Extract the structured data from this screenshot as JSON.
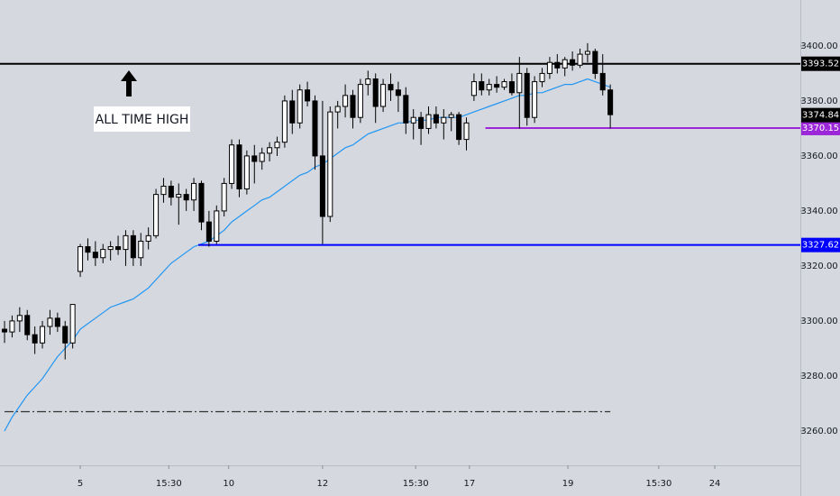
{
  "chart_data": {
    "type": "candlestick",
    "x": [
      0,
      1,
      2,
      3,
      4,
      5,
      6,
      7,
      8,
      9,
      10,
      11,
      12,
      13,
      14,
      15,
      16,
      17,
      18,
      19,
      20,
      21,
      22,
      23,
      24,
      25,
      26,
      27,
      28,
      29,
      30,
      31,
      32,
      33,
      34,
      35,
      36,
      37,
      38,
      39,
      40,
      41,
      42,
      43,
      44,
      45,
      46,
      47,
      48,
      49,
      50,
      51,
      52,
      53,
      54,
      55,
      56,
      57,
      58,
      59,
      60,
      61,
      62,
      63,
      64,
      65,
      66,
      67,
      68,
      69,
      70,
      71,
      72,
      73,
      74,
      75,
      76,
      77,
      78,
      79,
      80
    ],
    "open": [
      3297,
      3296,
      3300,
      3302,
      3295,
      3292,
      3298,
      3301,
      3298,
      3292,
      3318,
      3327,
      3325,
      3323,
      3326,
      3327,
      3326,
      3331,
      3323,
      3329,
      3331,
      3346,
      3349,
      3345,
      3346,
      3344,
      3350,
      3336,
      3329,
      3340,
      3350,
      3364,
      3348,
      3360,
      3358,
      3361,
      3363,
      3365,
      3380,
      3372,
      3384,
      3380,
      3360,
      3338,
      3376,
      3378,
      3382,
      3374,
      3386,
      3388,
      3378,
      3386,
      3384,
      3382,
      3372,
      3374,
      3370,
      3375,
      3372,
      3374,
      3375,
      3366,
      3382,
      3387,
      3384,
      3386,
      3385,
      3387,
      3383,
      3390,
      3374,
      3387,
      3390,
      3394,
      3392,
      3395,
      3393,
      3397,
      3398,
      3390,
      3384
    ],
    "high": [
      3300,
      3302,
      3305,
      3304,
      3298,
      3300,
      3304,
      3303,
      3300,
      3306,
      3328,
      3330,
      3329,
      3328,
      3329,
      3331,
      3333,
      3333,
      3332,
      3334,
      3348,
      3352,
      3351,
      3350,
      3348,
      3352,
      3351,
      3340,
      3342,
      3352,
      3366,
      3366,
      3362,
      3364,
      3363,
      3365,
      3367,
      3382,
      3384,
      3386,
      3387,
      3382,
      3380,
      3378,
      3380,
      3386,
      3384,
      3388,
      3391,
      3390,
      3388,
      3390,
      3387,
      3385,
      3377,
      3376,
      3378,
      3378,
      3377,
      3376,
      3376,
      3374,
      3390,
      3390,
      3388,
      3389,
      3388,
      3390,
      3396,
      3392,
      3389,
      3392,
      3396,
      3397,
      3396,
      3398,
      3399,
      3401,
      3399,
      3397,
      3386
    ],
    "low": [
      3292,
      3294,
      3296,
      3293,
      3288,
      3290,
      3295,
      3296,
      3286,
      3290,
      3316,
      3322,
      3320,
      3321,
      3322,
      3324,
      3320,
      3320,
      3320,
      3326,
      3330,
      3343,
      3342,
      3335,
      3340,
      3340,
      3333,
      3327,
      3328,
      3338,
      3348,
      3345,
      3346,
      3350,
      3355,
      3358,
      3360,
      3363,
      3368,
      3370,
      3378,
      3355,
      3328,
      3336,
      3370,
      3374,
      3370,
      3372,
      3382,
      3372,
      3376,
      3380,
      3376,
      3368,
      3366,
      3364,
      3368,
      3370,
      3366,
      3369,
      3364,
      3362,
      3380,
      3382,
      3382,
      3383,
      3384,
      3382,
      3370,
      3371,
      3372,
      3385,
      3388,
      3390,
      3389,
      3391,
      3392,
      3394,
      3388,
      3382,
      3370
    ],
    "close": [
      3296,
      3300,
      3302,
      3295,
      3292,
      3298,
      3301,
      3298,
      3292,
      3306,
      3327,
      3325,
      3323,
      3326,
      3327,
      3326,
      3331,
      3323,
      3329,
      3331,
      3346,
      3349,
      3345,
      3346,
      3344,
      3350,
      3336,
      3329,
      3340,
      3350,
      3364,
      3348,
      3360,
      3358,
      3361,
      3363,
      3365,
      3380,
      3372,
      3384,
      3380,
      3360,
      3338,
      3376,
      3378,
      3382,
      3374,
      3386,
      3388,
      3378,
      3386,
      3384,
      3382,
      3372,
      3374,
      3370,
      3375,
      3372,
      3374,
      3375,
      3366,
      3372,
      3387,
      3384,
      3386,
      3385,
      3387,
      3383,
      3390,
      3374,
      3387,
      3390,
      3394,
      3392,
      3395,
      3393,
      3397,
      3398,
      3390,
      3384,
      3375
    ],
    "ma": {
      "color": "#2196f3",
      "values": [
        3260,
        3265,
        3269,
        3273,
        3276,
        3279,
        3283,
        3287,
        3290,
        3293,
        3297,
        3299,
        3301,
        3303,
        3305,
        3306,
        3307,
        3308,
        3310,
        3312,
        3315,
        3318,
        3321,
        3323,
        3325,
        3327,
        3328,
        3329,
        3331,
        3333,
        3336,
        3338,
        3340,
        3342,
        3344,
        3345,
        3347,
        3349,
        3351,
        3353,
        3354,
        3356,
        3357,
        3359,
        3361,
        3363,
        3364,
        3366,
        3368,
        3369,
        3370,
        3371,
        3372,
        3372,
        3373,
        3373,
        3373,
        3374,
        3374,
        3374,
        3374,
        3375,
        3376,
        3377,
        3378,
        3379,
        3380,
        3381,
        3382,
        3382,
        3383,
        3383,
        3384,
        3385,
        3386,
        3386,
        3387,
        3388,
        3387,
        3386,
        3385
      ]
    },
    "up_color": "#ffffff",
    "down_color": "#000000",
    "xlim": [
      -0.6,
      105.1
    ],
    "xticks": [
      {
        "value": 10,
        "label": "5"
      },
      {
        "value": 21.7,
        "label": "15:30"
      },
      {
        "value": 29.6,
        "label": "10"
      },
      {
        "value": 42,
        "label": "12"
      },
      {
        "value": 54.3,
        "label": "15:30"
      },
      {
        "value": 61.4,
        "label": "17"
      },
      {
        "value": 74.4,
        "label": "19"
      },
      {
        "value": 86.4,
        "label": "15:30"
      },
      {
        "value": 93.8,
        "label": "24"
      }
    ],
    "ylim": [
      3247.5,
      3416.7
    ],
    "yticks": [
      {
        "value": 3260,
        "label": "3260.00"
      },
      {
        "value": 3280,
        "label": "3280.00"
      },
      {
        "value": 3300,
        "label": "3300.00"
      },
      {
        "value": 3320,
        "label": "3320.00"
      },
      {
        "value": 3340,
        "label": "3340.00"
      },
      {
        "value": 3360,
        "label": "3360.00"
      },
      {
        "value": 3380,
        "label": "3380.00"
      },
      {
        "value": 3400,
        "label": "3400.00"
      }
    ],
    "levels": [
      {
        "value": 3393.52,
        "color": "#000000",
        "from": -0.6
      },
      {
        "value": 3370.15,
        "color": "#9c27d8",
        "from": 63.5
      },
      {
        "value": 3327.62,
        "color": "#0000ff",
        "from": 25.6
      }
    ],
    "last_price": 3374.84,
    "dashed_line": {
      "value": 3267,
      "from": 0,
      "to": 80
    },
    "annotation": "ALL TIME HIGH"
  }
}
